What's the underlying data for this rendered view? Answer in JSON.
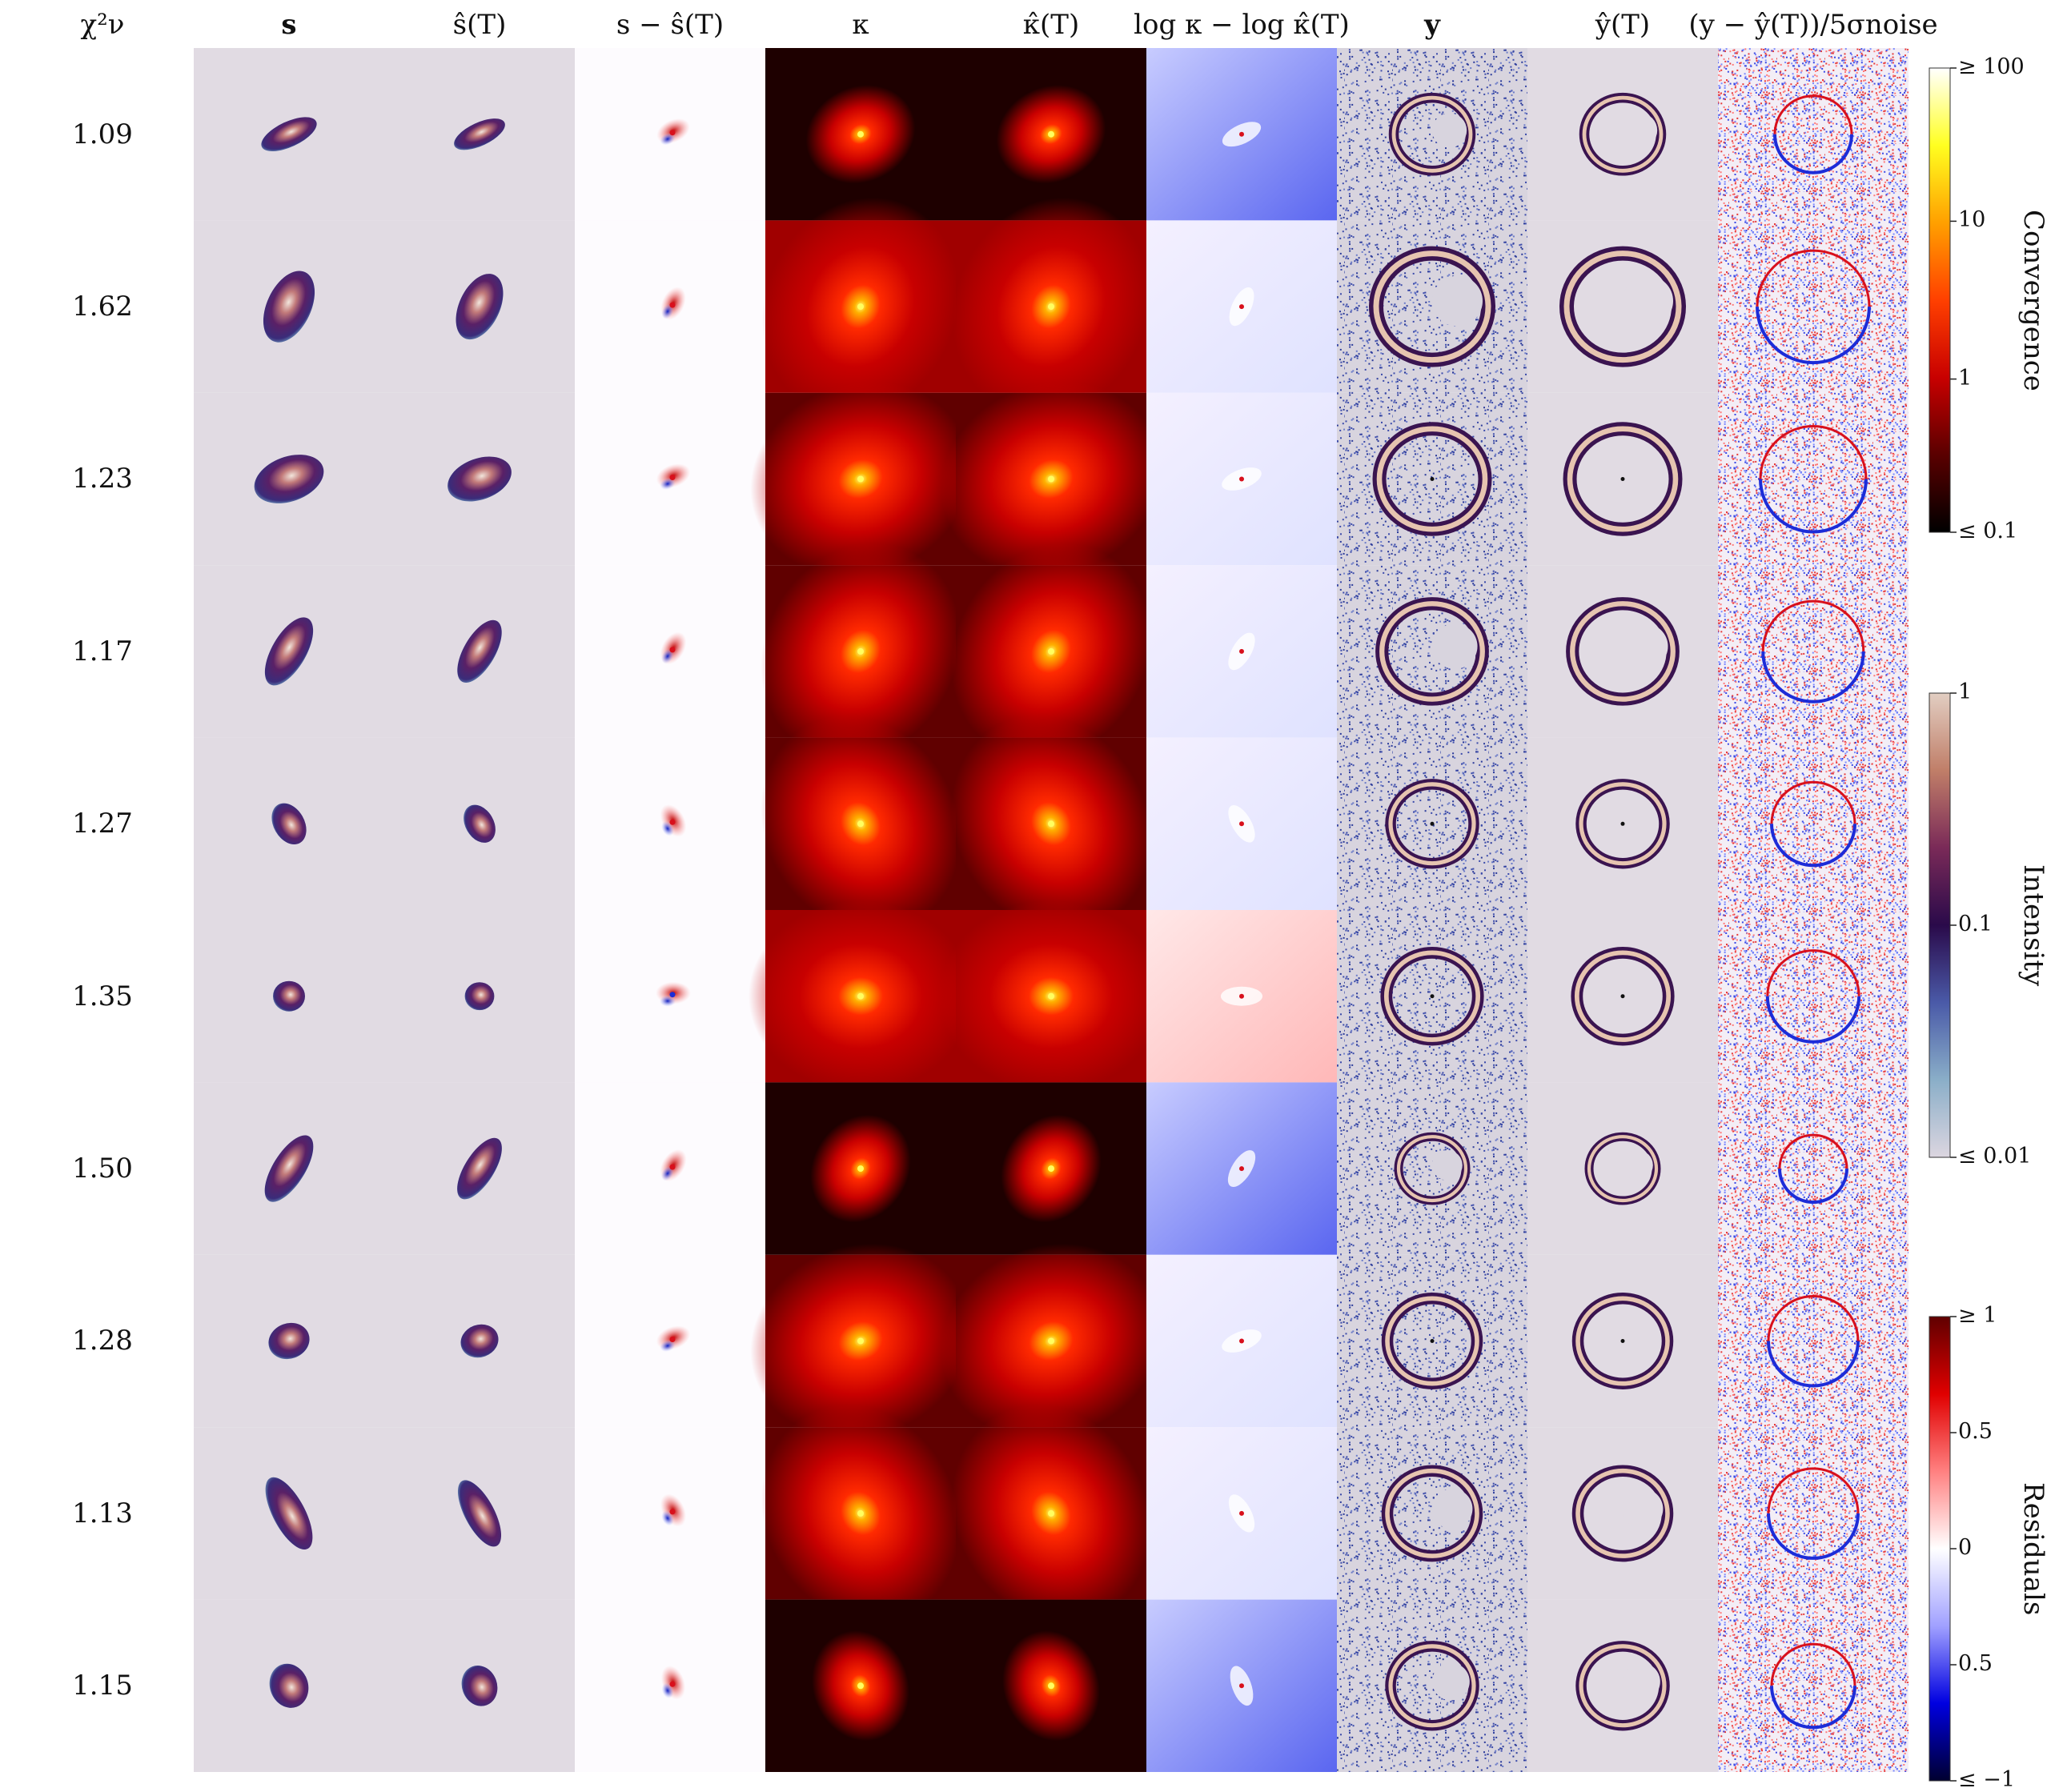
{
  "figure": {
    "column_headers": [
      "χ²ν",
      "s",
      "ŝ(T)",
      "s − ŝ(T)",
      "κ",
      "κ̂(T)",
      "log κ − log κ̂(T)",
      "y",
      "ŷ(T)",
      "(y − ŷ(T))/5σnoise"
    ],
    "chi2_values": [
      "1.09",
      "1.62",
      "1.23",
      "1.17",
      "1.27",
      "1.35",
      "1.50",
      "1.28",
      "1.13",
      "1.15"
    ],
    "colorbars": [
      {
        "title": "Convergence",
        "colors": [
          "#000000",
          "#5a0000",
          "#c80000",
          "#ff4000",
          "#ffa000",
          "#ffff20",
          "#ffffff"
        ],
        "ticks": [
          "≥ 100",
          "10",
          "1",
          "≤ 0.1"
        ]
      },
      {
        "title": "Intensity",
        "colors": [
          "#dcd6e0",
          "#8aaec8",
          "#4a5aa8",
          "#2a0a4a",
          "#7a2a58",
          "#c07e68",
          "#e2cec2"
        ],
        "ticks": [
          "1",
          "0.1",
          "≤ 0.01"
        ]
      },
      {
        "title": "Residuals",
        "colors": [
          "#000030",
          "#0000e0",
          "#a0a0ff",
          "#ffffff",
          "#ff8080",
          "#e00000",
          "#600000"
        ],
        "ticks": [
          "≥ 1",
          "0.5",
          "0",
          "0.5",
          "≤ −1"
        ]
      }
    ],
    "panel_colors": {
      "source_bg": "#e1dbe3",
      "residual_bg": "#fdfbfe",
      "kappa_bg": "#6e0000",
      "noise_bg": "#d8d4de",
      "positive": "#d8101c",
      "negative": "#1c2cd8",
      "arc_dark": "#3a1450",
      "arc_bright": "#e6c4b0"
    }
  }
}
